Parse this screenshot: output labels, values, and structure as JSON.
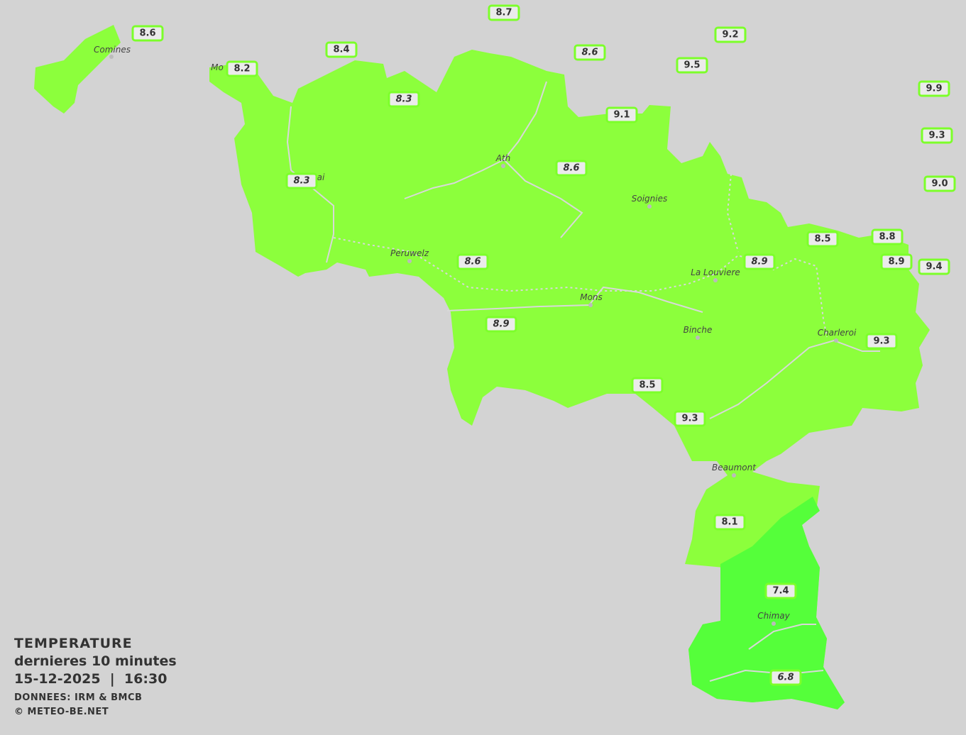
{
  "colors": {
    "background": "#d3d3d3",
    "temp_8_9": "#8cff3c",
    "temp_7": "#55ff3a",
    "label_border": "#7cff2a",
    "label_bg": "#ebebeb"
  },
  "legend": {
    "title": "TEMPERATURE",
    "period": "dernieres 10 minutes",
    "datetime": "15-12-2025  |  16:30",
    "source": "DONNEES: IRM & BMCB",
    "copyright": "© METEO-BE.NET"
  },
  "cities": [
    {
      "name": "Comines"
    },
    {
      "name": "Mo"
    },
    {
      "name": "ai"
    },
    {
      "name": "Ath"
    },
    {
      "name": "Soignies"
    },
    {
      "name": "Peruwelz"
    },
    {
      "name": "La Louviere"
    },
    {
      "name": "Mons"
    },
    {
      "name": "Binche"
    },
    {
      "name": "Charleroi"
    },
    {
      "name": "Beaumont"
    },
    {
      "name": "Chimay"
    }
  ],
  "stations": [
    {
      "value": "8.7",
      "italic": false
    },
    {
      "value": "8.6",
      "italic": false
    },
    {
      "value": "8.4",
      "italic": false
    },
    {
      "value": "8.2",
      "italic": false
    },
    {
      "value": "9.2",
      "italic": false
    },
    {
      "value": "8.6",
      "italic": true
    },
    {
      "value": "9.5",
      "italic": false
    },
    {
      "value": "8.3",
      "italic": true
    },
    {
      "value": "9.9",
      "italic": false
    },
    {
      "value": "9.1",
      "italic": false
    },
    {
      "value": "9.3",
      "italic": false
    },
    {
      "value": "8.6",
      "italic": true
    },
    {
      "value": "8.3",
      "italic": true
    },
    {
      "value": "9.0",
      "italic": false
    },
    {
      "value": "8.5",
      "italic": false
    },
    {
      "value": "8.8",
      "italic": false
    },
    {
      "value": "8.9",
      "italic": true
    },
    {
      "value": "8.6",
      "italic": true
    },
    {
      "value": "8.9",
      "italic": false
    },
    {
      "value": "9.4",
      "italic": false
    },
    {
      "value": "8.9",
      "italic": true
    },
    {
      "value": "9.3",
      "italic": false
    },
    {
      "value": "8.5",
      "italic": false
    },
    {
      "value": "9.3",
      "italic": false
    },
    {
      "value": "8.1",
      "italic": false
    },
    {
      "value": "7.4",
      "italic": false
    },
    {
      "value": "6.8",
      "italic": true
    }
  ]
}
